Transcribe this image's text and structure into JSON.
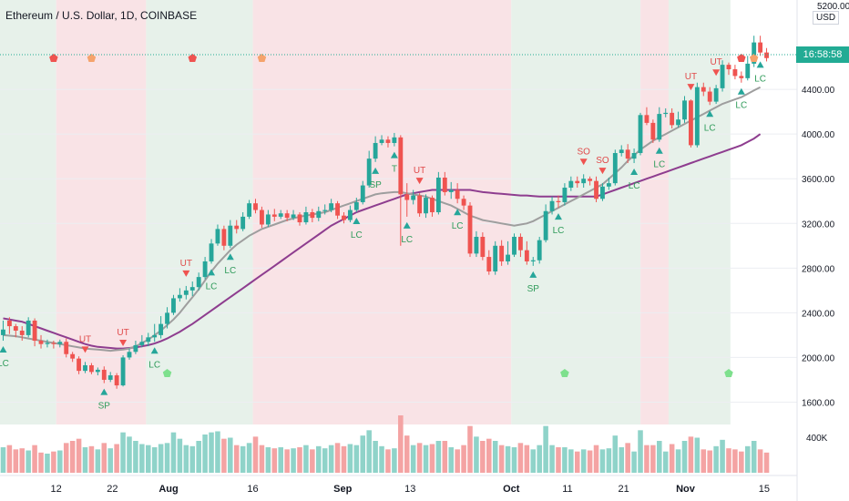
{
  "header": {
    "title": "Ethereum / U.S. Dollar, 1D, COINBASE"
  },
  "price_axis": {
    "currency": "USD",
    "top_label": "5200.00",
    "ticks": [
      "4400.00",
      "4000.00",
      "3600.00",
      "3200.00",
      "2800.00",
      "2400.00",
      "2000.00",
      "1600.00"
    ],
    "current_time_label": "16:58:58"
  },
  "volume_axis": {
    "label": "400K"
  },
  "time_axis": {
    "labels": [
      "12",
      "22",
      "Aug",
      "16",
      "Sep",
      "13",
      "Oct",
      "11",
      "21",
      "Nov",
      "15"
    ]
  },
  "colors": {
    "up": "#26a69a",
    "down": "#ef5350",
    "bg_green": "#e7f1ea",
    "bg_red": "#f9e3e6",
    "ma_slow": "#8e3d8f",
    "ma_fast": "#9e9e9e",
    "signal_red": "#ef5350",
    "signal_orange": "#f5a36c",
    "signal_green": "#7ee08d"
  },
  "chart_data": {
    "type": "candlestick",
    "title": "Ethereum / U.S. Dollar, 1D, COINBASE",
    "ylim": [
      1400,
      5200
    ],
    "x_range": [
      "2021-07-02",
      "2021-11-16"
    ],
    "regimes": [
      {
        "from": "2021-07-02",
        "to": "2021-07-12",
        "state": "bull"
      },
      {
        "from": "2021-07-12",
        "to": "2021-07-28",
        "state": "bear"
      },
      {
        "from": "2021-07-28",
        "to": "2021-08-16",
        "state": "bull"
      },
      {
        "from": "2021-08-16",
        "to": "2021-10-01",
        "state": "bear"
      },
      {
        "from": "2021-10-01",
        "to": "2021-10-24",
        "state": "bull"
      },
      {
        "from": "2021-10-24",
        "to": "2021-10-29",
        "state": "bear"
      },
      {
        "from": "2021-10-29",
        "to": "2021-11-09",
        "state": "bull"
      }
    ],
    "candles": [
      [
        2200,
        2250,
        2150,
        2330
      ],
      [
        2330,
        2280,
        2210,
        2360
      ],
      [
        2280,
        2240,
        2180,
        2300
      ],
      [
        2240,
        2200,
        2150,
        2280
      ],
      [
        2200,
        2330,
        2180,
        2360
      ],
      [
        2330,
        2150,
        2100,
        2350
      ],
      [
        2150,
        2120,
        2080,
        2200
      ],
      [
        2120,
        2130,
        2090,
        2160
      ],
      [
        2130,
        2120,
        2080,
        2150
      ],
      [
        2120,
        2140,
        2090,
        2160
      ],
      [
        2140,
        2030,
        2000,
        2170
      ],
      [
        2030,
        1990,
        1960,
        2050
      ],
      [
        1990,
        1880,
        1850,
        2010
      ],
      [
        1880,
        1930,
        1860,
        1960
      ],
      [
        1930,
        1870,
        1850,
        1950
      ],
      [
        1870,
        1890,
        1840,
        1910
      ],
      [
        1890,
        1800,
        1770,
        1920
      ],
      [
        1800,
        1840,
        1780,
        1870
      ],
      [
        1840,
        1750,
        1720,
        1860
      ],
      [
        1750,
        2000,
        1740,
        2020
      ],
      [
        2000,
        2050,
        1980,
        2080
      ],
      [
        2050,
        2110,
        2030,
        2150
      ],
      [
        2110,
        2140,
        2090,
        2200
      ],
      [
        2140,
        2180,
        2100,
        2220
      ],
      [
        2180,
        2200,
        2140,
        2300
      ],
      [
        2200,
        2300,
        2170,
        2370
      ],
      [
        2300,
        2400,
        2260,
        2450
      ],
      [
        2400,
        2530,
        2380,
        2560
      ],
      [
        2530,
        2560,
        2500,
        2620
      ],
      [
        2560,
        2600,
        2520,
        2640
      ],
      [
        2600,
        2630,
        2550,
        2680
      ],
      [
        2630,
        2720,
        2600,
        2760
      ],
      [
        2720,
        2860,
        2700,
        2900
      ],
      [
        2860,
        3020,
        2840,
        3060
      ],
      [
        3020,
        3150,
        3000,
        3190
      ],
      [
        3150,
        3000,
        2960,
        3180
      ],
      [
        3000,
        3180,
        2980,
        3230
      ],
      [
        3180,
        3150,
        3110,
        3230
      ],
      [
        3150,
        3260,
        3130,
        3300
      ],
      [
        3260,
        3380,
        3240,
        3410
      ],
      [
        3380,
        3320,
        3290,
        3420
      ],
      [
        3320,
        3190,
        3160,
        3350
      ],
      [
        3190,
        3280,
        3170,
        3320
      ],
      [
        3280,
        3260,
        3220,
        3330
      ],
      [
        3260,
        3290,
        3240,
        3320
      ],
      [
        3290,
        3250,
        3220,
        3320
      ],
      [
        3250,
        3280,
        3230,
        3320
      ],
      [
        3280,
        3210,
        3180,
        3300
      ],
      [
        3210,
        3300,
        3190,
        3350
      ],
      [
        3300,
        3250,
        3210,
        3330
      ],
      [
        3250,
        3310,
        3220,
        3350
      ],
      [
        3310,
        3320,
        3280,
        3370
      ],
      [
        3320,
        3380,
        3300,
        3420
      ],
      [
        3380,
        3270,
        3240,
        3400
      ],
      [
        3270,
        3230,
        3200,
        3300
      ],
      [
        3230,
        3320,
        3210,
        3360
      ],
      [
        3320,
        3390,
        3300,
        3430
      ],
      [
        3390,
        3540,
        3370,
        3580
      ],
      [
        3540,
        3780,
        3520,
        3850
      ],
      [
        3780,
        3920,
        3750,
        3980
      ],
      [
        3920,
        3950,
        3900,
        3990
      ],
      [
        3950,
        3920,
        3880,
        3980
      ],
      [
        3920,
        3970,
        3890,
        4010
      ],
      [
        3970,
        3460,
        3000,
        3990
      ],
      [
        3460,
        3410,
        3260,
        3560
      ],
      [
        3410,
        3450,
        3370,
        3500
      ],
      [
        3450,
        3290,
        3260,
        3470
      ],
      [
        3290,
        3430,
        3250,
        3460
      ],
      [
        3430,
        3300,
        3260,
        3450
      ],
      [
        3300,
        3610,
        3280,
        3660
      ],
      [
        3610,
        3480,
        3450,
        3660
      ],
      [
        3480,
        3500,
        3420,
        3570
      ],
      [
        3500,
        3420,
        3380,
        3560
      ],
      [
        3420,
        3360,
        3320,
        3450
      ],
      [
        3360,
        2930,
        2900,
        3390
      ],
      [
        2930,
        3080,
        2900,
        3130
      ],
      [
        3080,
        2900,
        2870,
        3120
      ],
      [
        2900,
        2770,
        2740,
        2960
      ],
      [
        2770,
        3000,
        2740,
        3040
      ],
      [
        3000,
        2860,
        2820,
        3050
      ],
      [
        2860,
        2920,
        2830,
        3040
      ],
      [
        2920,
        3080,
        2900,
        3110
      ],
      [
        3080,
        2960,
        2900,
        3110
      ],
      [
        2960,
        2860,
        2830,
        3040
      ],
      [
        2860,
        2870,
        2820,
        2900
      ],
      [
        2870,
        3050,
        2840,
        3080
      ],
      [
        3050,
        3310,
        3030,
        3370
      ],
      [
        3310,
        3400,
        3280,
        3440
      ],
      [
        3400,
        3390,
        3340,
        3450
      ],
      [
        3390,
        3520,
        3360,
        3560
      ],
      [
        3520,
        3580,
        3490,
        3620
      ],
      [
        3580,
        3560,
        3520,
        3620
      ],
      [
        3560,
        3600,
        3520,
        3640
      ],
      [
        3600,
        3580,
        3540,
        3620
      ],
      [
        3580,
        3420,
        3390,
        3620
      ],
      [
        3420,
        3530,
        3400,
        3560
      ],
      [
        3530,
        3560,
        3500,
        3610
      ],
      [
        3560,
        3830,
        3540,
        3860
      ],
      [
        3830,
        3860,
        3800,
        3900
      ],
      [
        3860,
        3780,
        3740,
        3910
      ],
      [
        3780,
        3830,
        3740,
        3870
      ],
      [
        3830,
        4170,
        3810,
        4190
      ],
      [
        4170,
        4100,
        4080,
        4240
      ],
      [
        4100,
        3950,
        3920,
        4130
      ],
      [
        3950,
        4180,
        3930,
        4240
      ],
      [
        4180,
        4190,
        4150,
        4230
      ],
      [
        4190,
        4080,
        4050,
        4230
      ],
      [
        4080,
        4130,
        4060,
        4200
      ],
      [
        4130,
        4300,
        4100,
        4340
      ],
      [
        4300,
        3900,
        3880,
        4310
      ],
      [
        3900,
        4420,
        3880,
        4460
      ],
      [
        4420,
        4380,
        4340,
        4460
      ],
      [
        4380,
        4290,
        4260,
        4420
      ],
      [
        4290,
        4410,
        4270,
        4440
      ],
      [
        4410,
        4620,
        4380,
        4660
      ],
      [
        4620,
        4580,
        4530,
        4640
      ],
      [
        4580,
        4520,
        4490,
        4620
      ],
      [
        4520,
        4500,
        4460,
        4560
      ],
      [
        4500,
        4630,
        4480,
        4700
      ],
      [
        4630,
        4820,
        4600,
        4880
      ],
      [
        4820,
        4730,
        4700,
        4880
      ],
      [
        4730,
        4680,
        4650,
        4770
      ]
    ],
    "volume": [
      120,
      130,
      110,
      115,
      105,
      130,
      95,
      90,
      100,
      105,
      140,
      150,
      160,
      120,
      125,
      110,
      140,
      115,
      135,
      190,
      170,
      150,
      135,
      130,
      120,
      135,
      140,
      190,
      160,
      130,
      125,
      150,
      180,
      190,
      195,
      160,
      165,
      130,
      125,
      140,
      170,
      130,
      120,
      115,
      120,
      110,
      115,
      120,
      130,
      110,
      125,
      115,
      130,
      140,
      125,
      135,
      130,
      175,
      200,
      150,
      125,
      110,
      115,
      270,
      175,
      130,
      140,
      130,
      135,
      150,
      150,
      120,
      110,
      130,
      220,
      170,
      150,
      160,
      150,
      130,
      125,
      120,
      140,
      130,
      110,
      130,
      220,
      130,
      120,
      120,
      110,
      100,
      110,
      105,
      130,
      110,
      115,
      175,
      120,
      140,
      100,
      200,
      130,
      130,
      150,
      100,
      135,
      110,
      150,
      170,
      165,
      110,
      105,
      125,
      155,
      115,
      110,
      100,
      125,
      150,
      110,
      95
    ],
    "ma_fast": [
      2200,
      2195,
      2190,
      2180,
      2170,
      2160,
      2150,
      2140,
      2130,
      2120,
      2110,
      2100,
      2090,
      2080,
      2075,
      2070,
      2065,
      2060,
      2065,
      2070,
      2080,
      2100,
      2130,
      2160,
      2200,
      2240,
      2290,
      2340,
      2400,
      2470,
      2540,
      2610,
      2690,
      2770,
      2840,
      2900,
      2960,
      3010,
      3050,
      3090,
      3120,
      3150,
      3170,
      3190,
      3210,
      3230,
      3245,
      3260,
      3270,
      3280,
      3290,
      3300,
      3320,
      3340,
      3360,
      3380,
      3400,
      3420,
      3440,
      3460,
      3470,
      3475,
      3480,
      3480,
      3470,
      3460,
      3450,
      3440,
      3420,
      3400,
      3380,
      3360,
      3330,
      3300,
      3270,
      3250,
      3230,
      3220,
      3210,
      3200,
      3190,
      3180,
      3190,
      3200,
      3220,
      3250,
      3280,
      3310,
      3340,
      3370,
      3400,
      3430,
      3460,
      3490,
      3520,
      3550,
      3600,
      3650,
      3700,
      3760,
      3810,
      3860,
      3900,
      3940,
      3970,
      4000,
      4030,
      4060,
      4090,
      4120,
      4150,
      4180,
      4210,
      4240,
      4270,
      4290,
      4310,
      4330,
      4360,
      4390,
      4420
    ],
    "ma_slow": [
      2350,
      2340,
      2330,
      2320,
      2300,
      2280,
      2260,
      2240,
      2220,
      2200,
      2180,
      2160,
      2140,
      2120,
      2105,
      2095,
      2090,
      2085,
      2080,
      2080,
      2085,
      2090,
      2100,
      2110,
      2125,
      2145,
      2170,
      2200,
      2230,
      2265,
      2300,
      2340,
      2380,
      2420,
      2460,
      2500,
      2540,
      2580,
      2620,
      2660,
      2700,
      2740,
      2780,
      2820,
      2860,
      2900,
      2940,
      2980,
      3020,
      3060,
      3100,
      3140,
      3180,
      3210,
      3240,
      3270,
      3300,
      3320,
      3340,
      3360,
      3380,
      3400,
      3420,
      3440,
      3460,
      3470,
      3480,
      3490,
      3500,
      3500,
      3500,
      3500,
      3500,
      3500,
      3500,
      3490,
      3480,
      3475,
      3470,
      3465,
      3460,
      3455,
      3450,
      3450,
      3445,
      3440,
      3440,
      3440,
      3440,
      3440,
      3440,
      3440,
      3440,
      3440,
      3440,
      3460,
      3480,
      3500,
      3520,
      3540,
      3560,
      3580,
      3600,
      3620,
      3640,
      3660,
      3680,
      3700,
      3720,
      3740,
      3760,
      3780,
      3800,
      3820,
      3840,
      3860,
      3880,
      3900,
      3930,
      3960,
      4000
    ],
    "signals": [
      {
        "i": 0,
        "text": "LC",
        "type": "up"
      },
      {
        "i": 13,
        "text": "UT",
        "type": "down"
      },
      {
        "i": 16,
        "text": "SP",
        "type": "up"
      },
      {
        "i": 19,
        "text": "UT",
        "type": "down"
      },
      {
        "i": 24,
        "text": "LC",
        "type": "up"
      },
      {
        "i": 29,
        "text": "UT",
        "type": "down"
      },
      {
        "i": 33,
        "text": "LC",
        "type": "up"
      },
      {
        "i": 36,
        "text": "LC",
        "type": "up"
      },
      {
        "i": 56,
        "text": "LC",
        "type": "up"
      },
      {
        "i": 59,
        "text": "SP",
        "type": "up"
      },
      {
        "i": 62,
        "text": "T",
        "type": "up"
      },
      {
        "i": 64,
        "text": "LC",
        "type": "up"
      },
      {
        "i": 66,
        "text": "UT",
        "type": "down"
      },
      {
        "i": 72,
        "text": "LC",
        "type": "up"
      },
      {
        "i": 84,
        "text": "SP",
        "type": "up"
      },
      {
        "i": 88,
        "text": "LC",
        "type": "up"
      },
      {
        "i": 92,
        "text": "SO",
        "type": "down"
      },
      {
        "i": 95,
        "text": "SO",
        "type": "down"
      },
      {
        "i": 100,
        "text": "LC",
        "type": "up"
      },
      {
        "i": 104,
        "text": "LC",
        "type": "up"
      },
      {
        "i": 109,
        "text": "UT",
        "type": "down"
      },
      {
        "i": 112,
        "text": "LC",
        "type": "up"
      },
      {
        "i": 113,
        "text": "UT",
        "type": "down"
      },
      {
        "i": 117,
        "text": "LC",
        "type": "up"
      },
      {
        "i": 120,
        "text": "LC",
        "type": "up"
      }
    ],
    "pentagons": [
      {
        "i": 8,
        "color": "red",
        "pos": "top"
      },
      {
        "i": 14,
        "color": "orange",
        "pos": "top"
      },
      {
        "i": 30,
        "color": "red",
        "pos": "top"
      },
      {
        "i": 41,
        "color": "orange",
        "pos": "top"
      },
      {
        "i": 117,
        "color": "red",
        "pos": "top"
      },
      {
        "i": 119,
        "color": "orange",
        "pos": "top"
      },
      {
        "i": 26,
        "color": "green",
        "pos": "bottom"
      },
      {
        "i": 89,
        "color": "green",
        "pos": "bottom"
      },
      {
        "i": 115,
        "color": "green",
        "pos": "bottom"
      }
    ]
  }
}
